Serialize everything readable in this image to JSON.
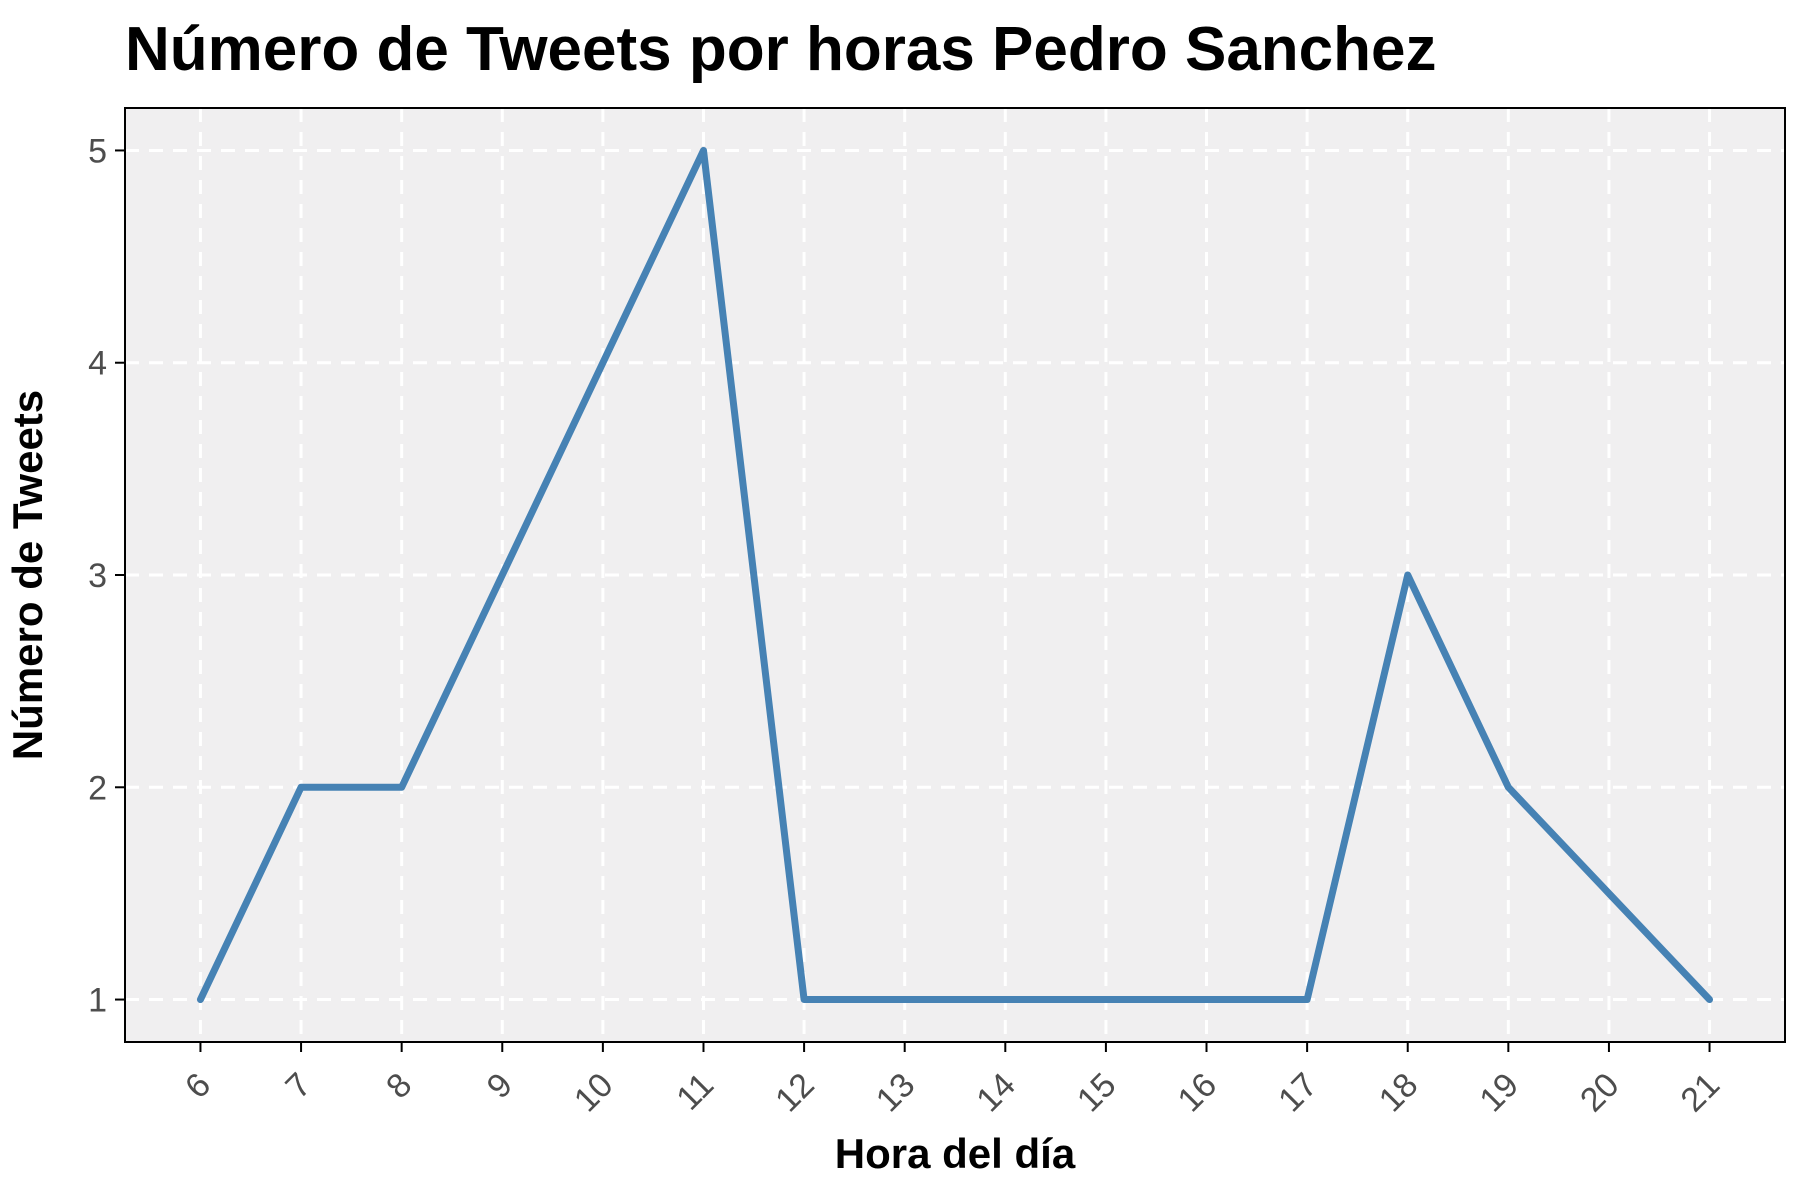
{
  "chart_data": {
    "type": "line",
    "title": "Número de Tweets por horas Pedro Sanchez",
    "xlabel": "Hora del día",
    "ylabel": "Número de Tweets",
    "x": [
      6,
      7,
      8,
      9,
      10,
      11,
      12,
      13,
      14,
      15,
      16,
      17,
      18,
      19,
      20,
      21
    ],
    "x_tick_labels": [
      "6",
      "7",
      "8",
      "9",
      "10",
      "11",
      "12",
      "13",
      "14",
      "15",
      "16",
      "17",
      "18",
      "19",
      "20",
      "21"
    ],
    "series": [
      {
        "values": [
          1,
          2,
          2,
          3,
          4,
          5,
          1,
          1,
          1,
          1,
          1,
          1,
          3,
          2,
          1.5,
          1
        ],
        "color": "#4682b4"
      }
    ],
    "y_ticks": [
      1,
      2,
      3,
      4,
      5
    ],
    "y_tick_labels": [
      "1",
      "2",
      "3",
      "4",
      "5"
    ],
    "xlim": [
      5.25,
      21.75
    ],
    "ylim": [
      0.8,
      5.2
    ],
    "grid": true,
    "grid_style": "dashed",
    "panel_background": "#f0eff0",
    "grid_color": "#ffffff"
  }
}
